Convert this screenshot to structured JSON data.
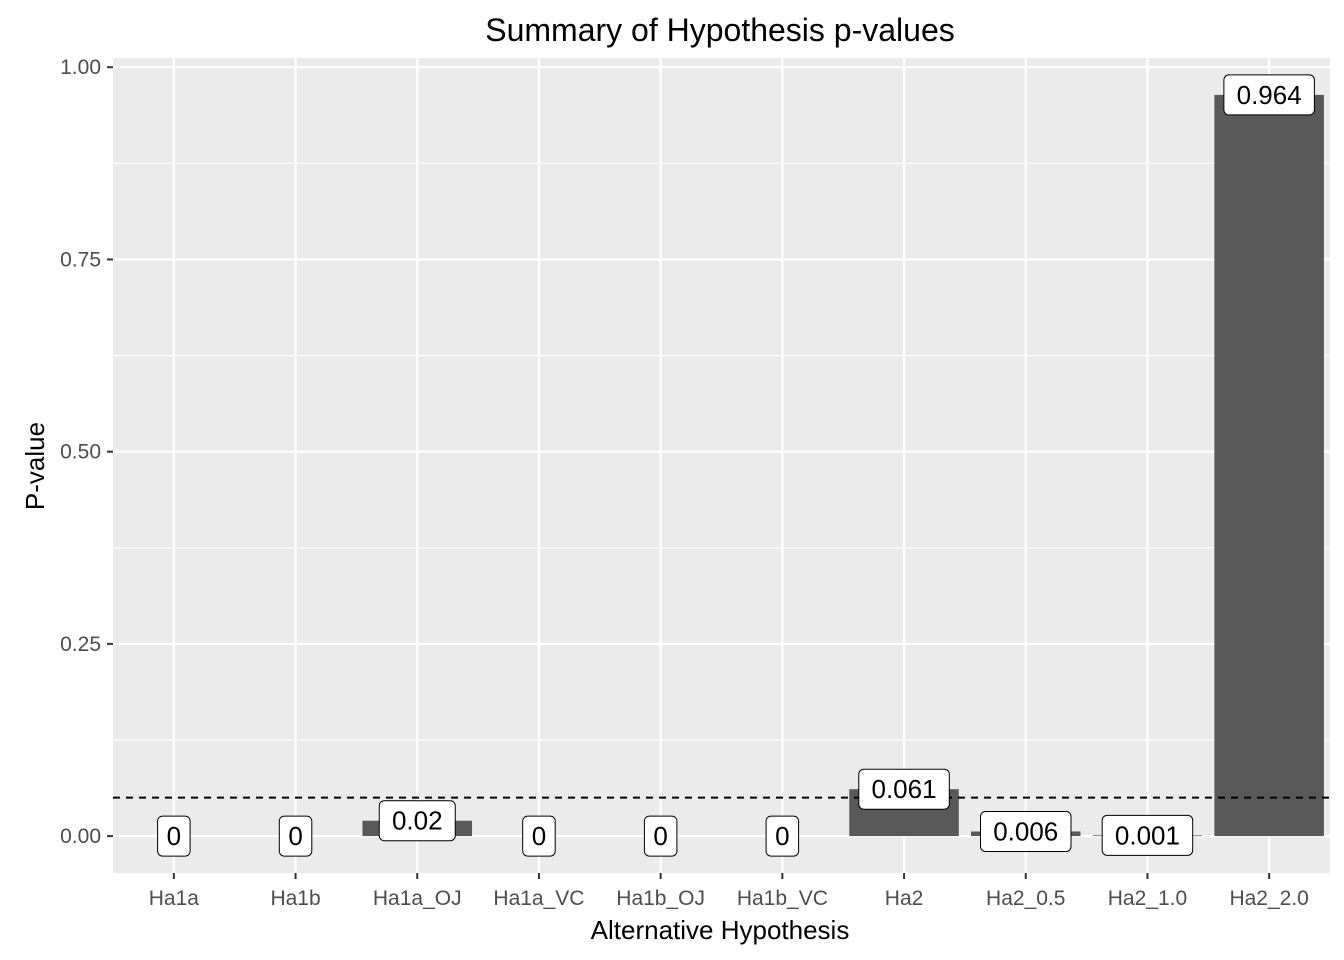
{
  "chart_data": {
    "type": "bar",
    "title": "Summary of Hypothesis p-values",
    "xlabel": "Alternative Hypothesis",
    "ylabel": "P-value",
    "categories": [
      "Ha1a",
      "Ha1b",
      "Ha1a_OJ",
      "Ha1a_VC",
      "Ha1b_OJ",
      "Ha1b_VC",
      "Ha2",
      "Ha2_0.5",
      "Ha2_1.0",
      "Ha2_2.0"
    ],
    "values": [
      0,
      0,
      0.02,
      0,
      0,
      0,
      0.061,
      0.006,
      0.001,
      0.964
    ],
    "data_labels": [
      "0",
      "0",
      "0.02",
      "0",
      "0",
      "0",
      "0.061",
      "0.006",
      "0.001",
      "0.964"
    ],
    "yticks": [
      0,
      0.25,
      0.5,
      0.75,
      1.0
    ],
    "ytick_labels": [
      "0.00",
      "0.25",
      "0.50",
      "0.75",
      "1.00"
    ],
    "ylim": [
      -0.048,
      1.012
    ],
    "reference_line": {
      "y": 0.05,
      "style": "dashed"
    },
    "grid": true,
    "colors": {
      "bar": "#595959",
      "panel": "#ebebeb",
      "grid": "#ffffff",
      "label_border": "#000000"
    }
  }
}
